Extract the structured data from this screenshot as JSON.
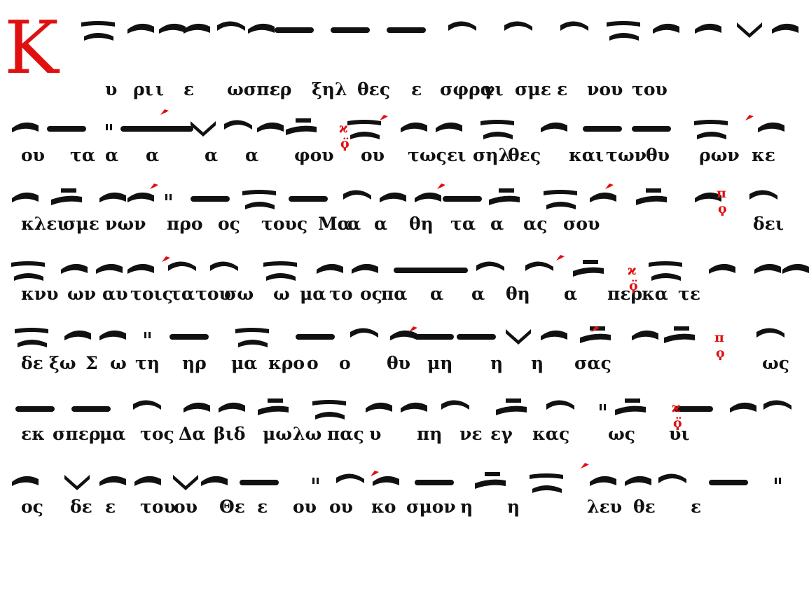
{
  "colors": {
    "text": "#111111",
    "red": "#e01010"
  },
  "initial_letter": "Κ",
  "lines": [
    [
      "υ",
      "ρι",
      "ι",
      "ε",
      "ωσπερ",
      "ε",
      "ξηλ",
      "θες",
      "ε",
      "σφρα",
      "γι",
      "σμε",
      "ε",
      "νου",
      "του"
    ],
    [
      "ου",
      "τα",
      "α",
      "α",
      "α",
      "α",
      "φου",
      "ου",
      "τως",
      "ει",
      "σηλ",
      "θες",
      "και",
      "των",
      "θυ",
      "ρων",
      "κε"
    ],
    [
      "κλει",
      "σμε",
      "νων",
      "προ",
      "ος",
      "τους",
      "Μα",
      "α",
      "α",
      "θη",
      "τα",
      "α",
      "ας",
      "σου",
      "δει"
    ],
    [
      "κνυ",
      "ων",
      "αυ",
      "τοις",
      "τα",
      "του",
      "σω",
      "ω",
      "μα",
      "το",
      "ος",
      "πα",
      "α",
      "α",
      "θη",
      "α",
      "περ",
      "κα",
      "τε"
    ],
    [
      "δε",
      "ξω",
      "Σ",
      "ω",
      "τη",
      "ηρ",
      "μα",
      "κρο",
      "ο",
      "ο",
      "θυ",
      "μη",
      "η",
      "η",
      "σας",
      "ως"
    ],
    [
      "εκ",
      "σπερ",
      "μα",
      "τος",
      "Δα",
      "βιδ",
      "μω",
      "λω",
      "πας",
      "υ",
      "πη",
      "νε",
      "εγ",
      "κας",
      "ως",
      "υι"
    ],
    [
      "ος",
      "δε",
      "ε",
      "του",
      "ου",
      "Θε",
      "ε",
      "ου",
      "ου",
      "κο",
      "σμον",
      "η",
      "η",
      "λευ",
      "θε",
      "ε"
    ]
  ],
  "ison_marks": [
    {
      "top": "ϰ",
      "bottom": "ϙ̈"
    },
    {
      "top": "π",
      "bottom": "ϙ"
    },
    {
      "top": "ϰ",
      "bottom": "ϙ̈"
    },
    {
      "top": "π",
      "bottom": "ϙ"
    },
    {
      "top": "ϰ",
      "bottom": "ϙ̈"
    }
  ]
}
